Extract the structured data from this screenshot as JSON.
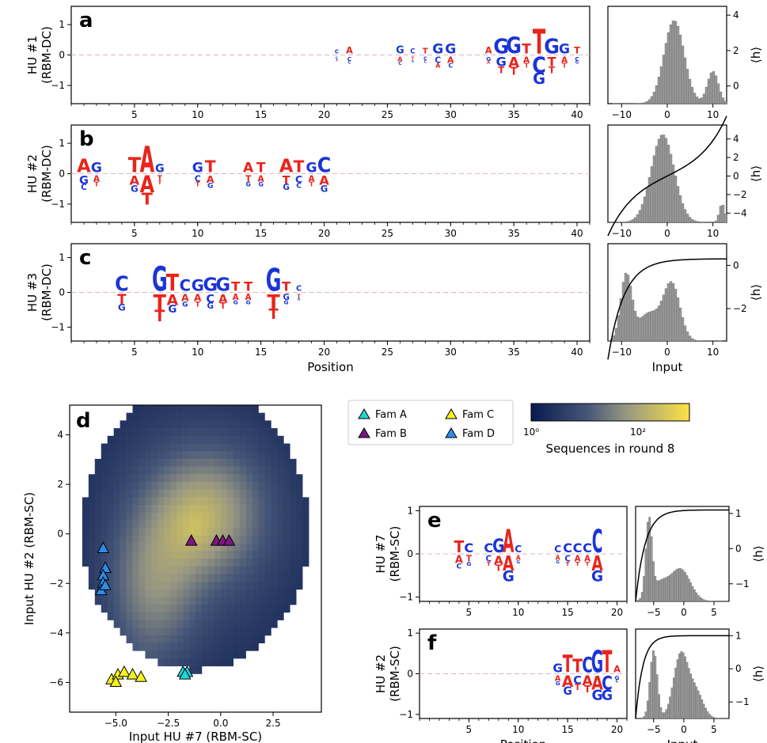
{
  "colors": {
    "A": "#e8251c",
    "T": "#e8251c",
    "C": "#1a35d6",
    "G": "#1a35d6",
    "hist": "#999999",
    "famA": "#22d4d8",
    "famB": "#7a1880",
    "famC": "#f5f01e",
    "famD": "#2f8ce6"
  },
  "chart_data": [
    {
      "type": "sequence-logo",
      "panel": "a",
      "ylabel": [
        "HU #1",
        "(RBM-DC)"
      ],
      "xlim": [
        0,
        41
      ],
      "ylim": [
        -1.6,
        1.6
      ],
      "yticks": [
        -1,
        0,
        1
      ],
      "xticks": [
        5,
        10,
        15,
        20,
        25,
        30,
        35,
        40
      ],
      "xlabel": "",
      "pos": [
        {
          "p": 34,
          "g": "GGT",
          "a": 0.9
        },
        {
          "p": 35,
          "g": "GAT",
          "a": 1.0
        },
        {
          "p": 36,
          "g": "TAT",
          "a": 0.6
        },
        {
          "p": 37,
          "g": "TCG",
          "a": 1.5
        },
        {
          "p": 38,
          "g": "GTT",
          "a": 0.9
        },
        {
          "p": 39,
          "g": "GAT",
          "a": 0.6
        },
        {
          "p": 40,
          "g": "TCG",
          "a": 0.4
        },
        {
          "p": 26,
          "g": "GAC",
          "a": 0.45
        },
        {
          "p": 27,
          "g": "CTG",
          "a": 0.3
        },
        {
          "p": 28,
          "g": "TCC",
          "a": 0.35
        },
        {
          "p": 29,
          "g": "GCA",
          "a": 0.6
        },
        {
          "p": 30,
          "g": "GAC",
          "a": 0.6
        },
        {
          "p": 33,
          "g": "AGA",
          "a": 0.4
        },
        {
          "p": 22,
          "g": "ACC",
          "a": 0.4
        },
        {
          "p": 21,
          "g": "CCA",
          "a": 0.25
        }
      ]
    },
    {
      "type": "sequence-logo",
      "panel": "b",
      "ylabel": [
        "HU #2",
        "(RBM-DC)"
      ],
      "xlim": [
        0,
        41
      ],
      "ylim": [
        -1.6,
        1.6
      ],
      "yticks": [
        -1,
        0,
        1
      ],
      "xticks": [
        5,
        10,
        15,
        20,
        25,
        30,
        35,
        40
      ],
      "xlabel": "",
      "pos": [
        {
          "p": 1,
          "g": "AGC",
          "a": 0.8
        },
        {
          "p": 2,
          "g": "GAT",
          "a": 0.6
        },
        {
          "p": 5,
          "g": "TAG",
          "a": 0.9
        },
        {
          "p": 6,
          "g": "AAT",
          "a": 1.6
        },
        {
          "p": 7,
          "g": "GTT",
          "a": 0.5
        },
        {
          "p": 10,
          "g": "GCT",
          "a": 0.6
        },
        {
          "p": 11,
          "g": "TAG",
          "a": 0.7
        },
        {
          "p": 14,
          "g": "ATG",
          "a": 0.6
        },
        {
          "p": 15,
          "g": "TAG",
          "a": 0.6
        },
        {
          "p": 17,
          "g": "ATG",
          "a": 0.8
        },
        {
          "p": 18,
          "g": "TCC",
          "a": 0.7
        },
        {
          "p": 19,
          "g": "GAT",
          "a": 0.6
        },
        {
          "p": 20,
          "g": "CAG",
          "a": 0.9
        }
      ]
    },
    {
      "type": "sequence-logo",
      "panel": "c",
      "ylabel": [
        "HU #3",
        "(RBM-DC)"
      ],
      "xlim": [
        0,
        41
      ],
      "ylim": [
        -1.4,
        1.4
      ],
      "yticks": [
        -1,
        0,
        1
      ],
      "xticks": [
        5,
        10,
        15,
        20,
        25,
        30,
        35,
        40
      ],
      "xlabel": "Position",
      "pos": [
        {
          "p": 4,
          "g": "CTG",
          "a": 0.8
        },
        {
          "p": 7,
          "g": "GTT",
          "a": 1.3
        },
        {
          "p": 8,
          "g": "TAG",
          "a": 0.9
        },
        {
          "p": 9,
          "g": "CAG",
          "a": 0.6
        },
        {
          "p": 10,
          "g": "GAT",
          "a": 0.6
        },
        {
          "p": 11,
          "g": "GCG",
          "a": 0.7
        },
        {
          "p": 12,
          "g": "GAT",
          "a": 0.7
        },
        {
          "p": 13,
          "g": "TAG",
          "a": 0.5
        },
        {
          "p": 14,
          "g": "TAG",
          "a": 0.5
        },
        {
          "p": 16,
          "g": "GTT",
          "a": 1.2
        },
        {
          "p": 17,
          "g": "TGG",
          "a": 0.5
        },
        {
          "p": 18,
          "g": "CTG",
          "a": 0.3
        }
      ]
    },
    {
      "type": "histogram",
      "panel": "a-right",
      "xlim": [
        -13,
        13
      ],
      "xticks": [
        -10,
        0,
        10
      ],
      "ylim": [
        -1,
        4.5
      ],
      "yticks": [
        0,
        2,
        4
      ],
      "ylabel": "⟨h⟩",
      "xlabel": ""
    },
    {
      "type": "histogram",
      "panel": "b-right",
      "xlim": [
        -13,
        13
      ],
      "xticks": [
        -10,
        0,
        10
      ],
      "ylim": [
        -5,
        5.5
      ],
      "yticks": [
        -4,
        -2,
        0,
        2,
        4
      ],
      "ylabel": "⟨h⟩",
      "xlabel": ""
    },
    {
      "type": "histogram",
      "panel": "c-right",
      "xlim": [
        -13,
        13
      ],
      "xticks": [
        -10,
        0,
        10
      ],
      "ylim": [
        -3.5,
        1
      ],
      "yticks": [
        -2,
        0
      ],
      "ylabel": "⟨h⟩",
      "xlabel": "Input"
    },
    {
      "type": "heatmap",
      "panel": "d",
      "xlabel": "Input HU #7 (RBM-SC)",
      "ylabel": "Input HU #2 (RBM-SC)",
      "xlim": [
        -7.2,
        4.8
      ],
      "ylim": [
        -7.2,
        5.2
      ],
      "xticks": [
        -5.0,
        -2.5,
        0.0,
        2.5
      ],
      "yticks": [
        -6,
        -4,
        -2,
        0,
        2,
        4
      ],
      "legend": [
        "Fam A",
        "Fam B",
        "Fam C",
        "Fam D"
      ],
      "colorbar": {
        "label": "Sequences in round 8",
        "ticks": [
          "10⁰",
          "10²"
        ]
      },
      "points": {
        "Fam A": [
          [
            -1.8,
            -5.6
          ],
          [
            -1.6,
            -5.6
          ],
          [
            -1.7,
            -5.7
          ]
        ],
        "Fam B": [
          [
            -1.4,
            -0.3
          ],
          [
            -0.2,
            -0.3
          ],
          [
            0.1,
            -0.3
          ],
          [
            0.4,
            -0.3
          ]
        ],
        "Fam C": [
          [
            -5.2,
            -5.9
          ],
          [
            -4.9,
            -5.7
          ],
          [
            -4.6,
            -5.6
          ],
          [
            -4.2,
            -5.7
          ],
          [
            -3.8,
            -5.8
          ],
          [
            -5.0,
            -6.0
          ]
        ],
        "Fam D": [
          [
            -5.6,
            -0.6
          ],
          [
            -5.5,
            -1.4
          ],
          [
            -5.6,
            -1.7
          ],
          [
            -5.6,
            -2.0
          ],
          [
            -5.7,
            -2.3
          ],
          [
            -5.5,
            -2.1
          ]
        ]
      }
    },
    {
      "type": "sequence-logo",
      "panel": "e",
      "ylabel": [
        "HU #7",
        "(RBM-SC)"
      ],
      "xlim": [
        0,
        21
      ],
      "ylim": [
        -1.1,
        1.1
      ],
      "yticks": [
        -1,
        0,
        1
      ],
      "xticks": [
        5,
        10,
        15,
        20
      ],
      "xlabel": "",
      "pos": [
        {
          "p": 4,
          "g": "TAC",
          "a": 0.5
        },
        {
          "p": 5,
          "g": "CTG",
          "a": 0.4
        },
        {
          "p": 7,
          "g": "CCT",
          "a": 0.4
        },
        {
          "p": 8,
          "g": "GAT",
          "a": 0.6
        },
        {
          "p": 9,
          "g": "AAG",
          "a": 1.0
        },
        {
          "p": 10,
          "g": "CAG",
          "a": 0.3
        },
        {
          "p": 14,
          "g": "CAG",
          "a": 0.3
        },
        {
          "p": 15,
          "g": "CCT",
          "a": 0.4
        },
        {
          "p": 16,
          "g": "CAT",
          "a": 0.4
        },
        {
          "p": 17,
          "g": "CAT",
          "a": 0.4
        },
        {
          "p": 18,
          "g": "CAG",
          "a": 1.0
        }
      ]
    },
    {
      "type": "histogram",
      "panel": "e-right",
      "xlim": [
        -8,
        7.5
      ],
      "xticks": [
        -5,
        0,
        5
      ],
      "ylim": [
        -1.5,
        1.2
      ],
      "yticks": [
        -1,
        0,
        1
      ],
      "ylabel": "⟨h⟩",
      "xlabel": ""
    },
    {
      "type": "sequence-logo",
      "panel": "f",
      "ylabel": [
        "HU #2",
        "(RBM-SC)"
      ],
      "xlim": [
        0,
        21
      ],
      "ylim": [
        -1.1,
        1.1
      ],
      "yticks": [
        -1,
        0,
        1
      ],
      "xticks": [
        5,
        10,
        15,
        20
      ],
      "xlabel": "Position",
      "pos": [
        {
          "p": 14,
          "g": "GAG",
          "a": 0.4
        },
        {
          "p": 15,
          "g": "TAG",
          "a": 0.8
        },
        {
          "p": 16,
          "g": "TCT",
          "a": 0.6
        },
        {
          "p": 17,
          "g": "CAT",
          "a": 0.7
        },
        {
          "p": 18,
          "g": "GAG",
          "a": 1.0
        },
        {
          "p": 19,
          "g": "TCG",
          "a": 1.0
        },
        {
          "p": 20,
          "g": "AGC",
          "a": 0.3
        }
      ]
    },
    {
      "type": "histogram",
      "panel": "f-right",
      "xlim": [
        -8,
        7.5
      ],
      "xticks": [
        -5,
        0,
        5
      ],
      "ylim": [
        -1.5,
        1.2
      ],
      "yticks": [
        -1,
        0,
        1
      ],
      "ylabel": "⟨h⟩",
      "xlabel": "Input"
    }
  ]
}
